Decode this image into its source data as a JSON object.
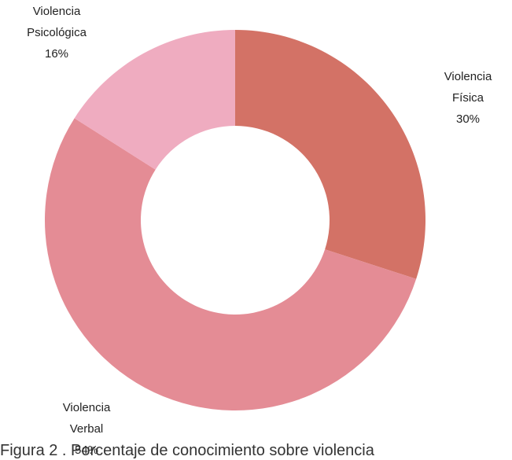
{
  "chart_data": {
    "type": "pie",
    "style": "donut",
    "slices": [
      {
        "label_lines": [
          "Violencia",
          "Física"
        ],
        "value": 30,
        "value_label": "30%",
        "color": "#D37266"
      },
      {
        "label_lines": [
          "Violencia",
          "Verbal"
        ],
        "value": 54,
        "value_label": "54%",
        "color": "#E48C95"
      },
      {
        "label_lines": [
          "Violencia",
          "Psicológica"
        ],
        "value": 16,
        "value_label": "16%",
        "color": "#EFACC0"
      }
    ],
    "legend": "none"
  },
  "caption": {
    "text": "Figura 2 . Porcentaje de conocimiento sobre violencia"
  }
}
